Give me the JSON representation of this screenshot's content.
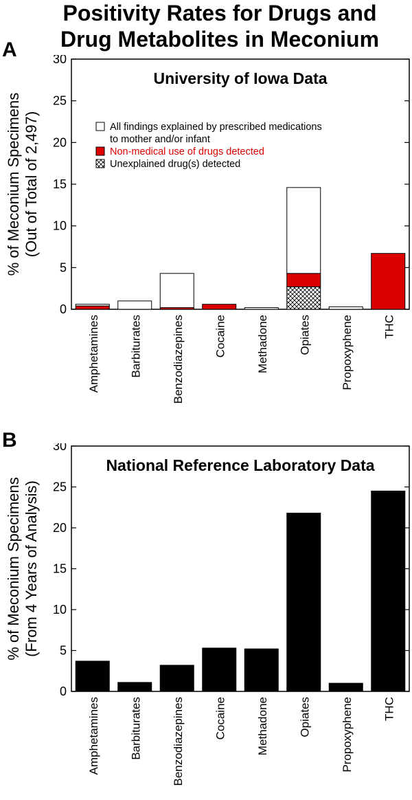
{
  "title_line1": "Positivity Rates for Drugs and",
  "title_line2": "Drug Metabolites in Meconium",
  "colors": {
    "red": "#dd0000",
    "black": "#000000",
    "white": "#ffffff"
  },
  "chart_data": [
    {
      "type": "bar",
      "stacked": true,
      "panel_label": "A",
      "title": "University of Iowa Data",
      "ylabel_line1": "% of Meconium Specimens",
      "ylabel_line2": "(Out of Total of 2,497)",
      "ylim": [
        0,
        30
      ],
      "yticks": [
        0,
        5,
        10,
        15,
        20,
        25,
        30
      ],
      "grid": false,
      "legend_position": "upper-left",
      "categories": [
        "Amphetamines",
        "Barbiturates",
        "Benzodiazepines",
        "Cocaine",
        "Methadone",
        "Opiates",
        "Propoxyphene",
        "THC"
      ],
      "series": [
        {
          "name": "Unexplained drug(s) detected",
          "pattern": "crosshatch",
          "values": [
            0,
            0,
            0,
            0,
            0,
            2.7,
            0,
            0
          ]
        },
        {
          "name": "Non-medical use of drugs detected",
          "color": "#dd0000",
          "values": [
            0.4,
            0,
            0.2,
            0.6,
            0,
            1.6,
            0,
            6.7
          ]
        },
        {
          "name": "All findings explained by prescribed medications to mother and/or infant",
          "color": "#ffffff",
          "values": [
            0.2,
            1.0,
            4.1,
            0,
            0.2,
            10.3,
            0.3,
            0
          ]
        }
      ],
      "legend": [
        {
          "key": "white",
          "line1": "All findings explained by prescribed medications",
          "line2": "to mother and/or infant"
        },
        {
          "key": "red",
          "line1": "Non-medical use of drugs detected",
          "line2": ""
        },
        {
          "key": "hatch",
          "line1": "Unexplained drug(s) detected",
          "line2": ""
        }
      ]
    },
    {
      "type": "bar",
      "panel_label": "B",
      "title": "National Reference Laboratory Data",
      "ylabel_line1": "% of Meconium Specimens",
      "ylabel_line2": "(From 4 Years of Analysis)",
      "ylim": [
        0,
        30
      ],
      "yticks": [
        0,
        5,
        10,
        15,
        20,
        25,
        30
      ],
      "grid": false,
      "categories": [
        "Amphetamines",
        "Barbiturates",
        "Benzodiazepines",
        "Cocaine",
        "Methadone",
        "Opiates",
        "Propoxyphene",
        "THC"
      ],
      "series": [
        {
          "name": "Positivity rate",
          "color": "#000000",
          "values": [
            3.7,
            1.1,
            3.2,
            5.3,
            5.2,
            21.8,
            1.0,
            24.5
          ]
        }
      ]
    }
  ]
}
